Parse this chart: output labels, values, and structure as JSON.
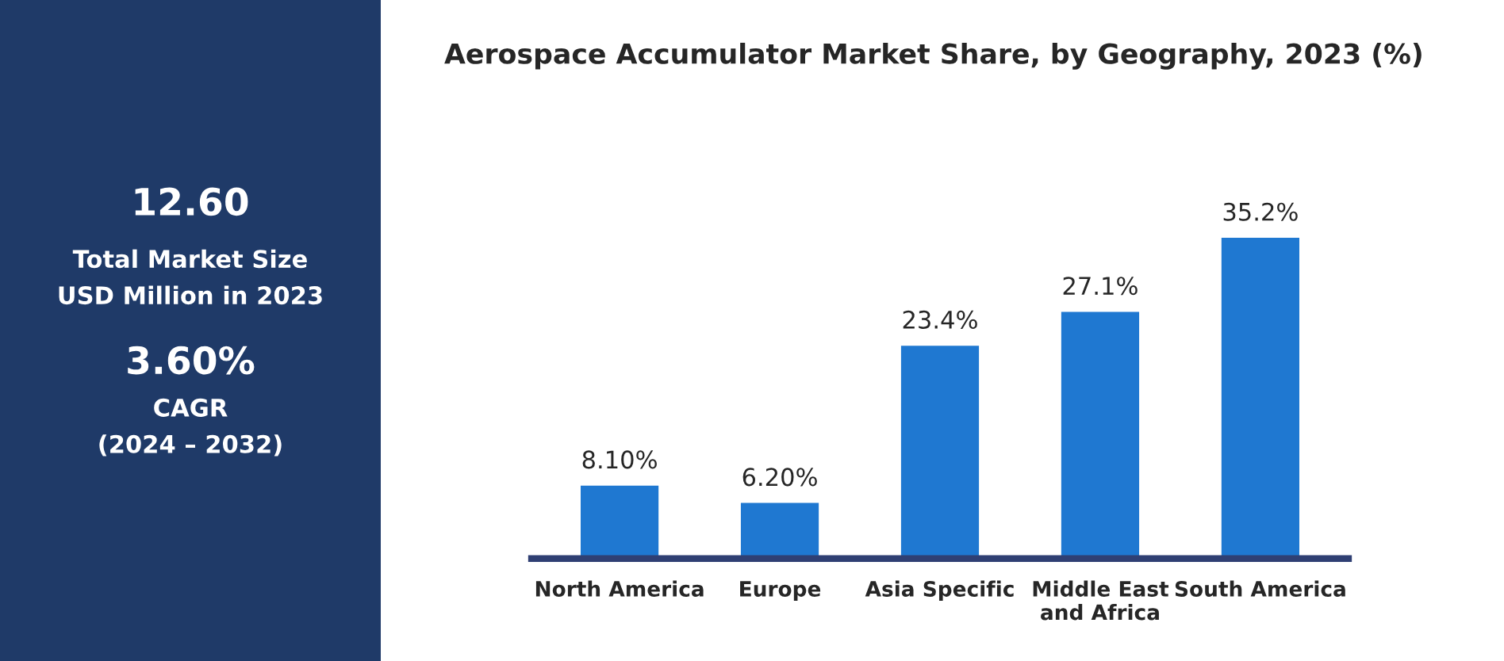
{
  "chart_data": {
    "type": "bar",
    "title": "Aerospace Accumulator Market Share, by Geography, 2023 (%)",
    "categories": [
      "North America",
      "Europe",
      "Asia Specific",
      "Middle East and Africa",
      "South America"
    ],
    "values": [
      8.1,
      6.2,
      23.4,
      27.1,
      35.2
    ],
    "value_labels": [
      "8.10%",
      "6.20%",
      "23.4%",
      "27.1%",
      "35.2%"
    ],
    "color": "#1f78d1",
    "annotations": [
      "12.60",
      "Total Market Size",
      "USD Million in 2023",
      "3.60%",
      "CAGR",
      "(2024 – 2032)"
    ]
  }
}
